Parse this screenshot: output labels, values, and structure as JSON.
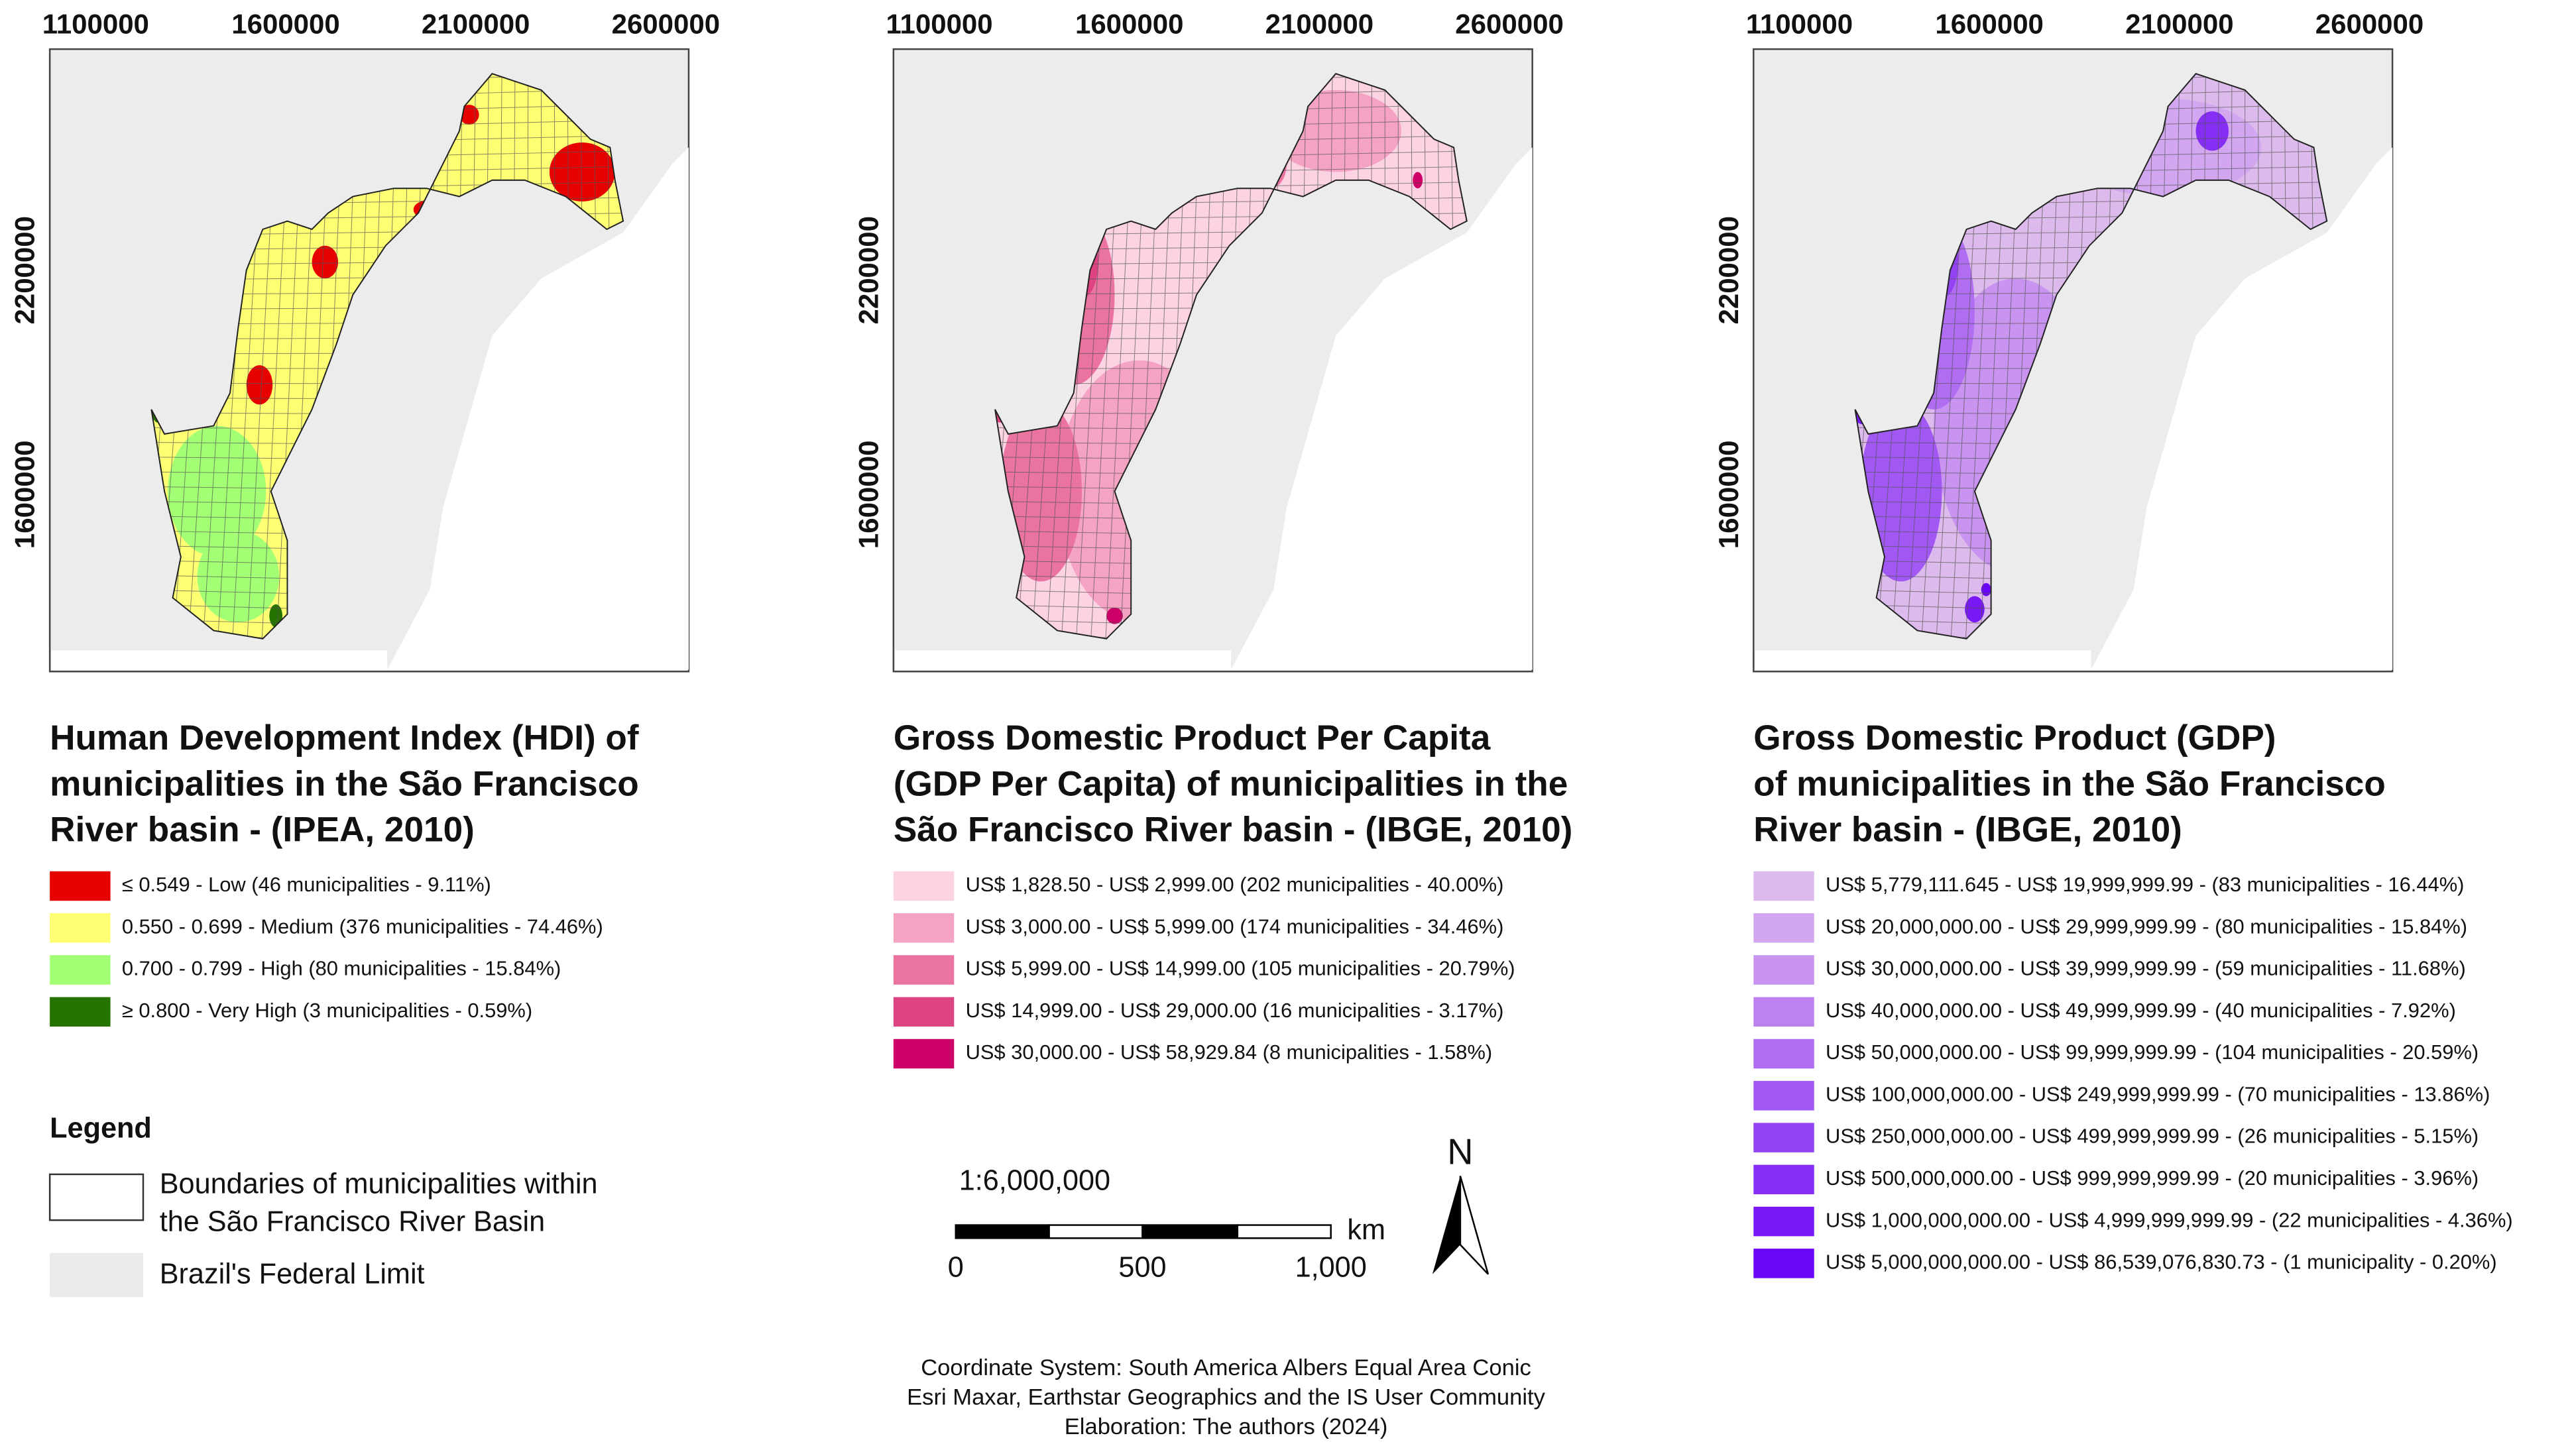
{
  "maps": [
    {
      "x_ticks": [
        1100000,
        1600000,
        2100000,
        2600000
      ],
      "y_ticks": [
        2200000,
        1600000
      ],
      "title": [
        "Human Development Index (HDI) of",
        "municipalities in the São Francisco",
        "River basin - (IPEA, 2010)"
      ],
      "legend": [
        {
          "label": "≤ 0.549 - Low (46 municipalities - 9.11%)",
          "color": "#e60000"
        },
        {
          "label": "0.550 - 0.699 - Medium (376 municipalities - 74.46%)",
          "color": "#ffff73"
        },
        {
          "label": "0.700 - 0.799 - High (80 municipalities - 15.84%)",
          "color": "#a3ff73"
        },
        {
          "label": "≥ 0.800 - Very High (3 municipalities - 0.59%)",
          "color": "#267300"
        }
      ]
    },
    {
      "x_ticks": [
        1100000,
        1600000,
        2100000,
        2600000
      ],
      "y_ticks": [
        2200000,
        1600000
      ],
      "title": [
        "Gross Domestic Product Per Capita",
        "(GDP Per Capita) of municipalities in the",
        "São Francisco River basin - (IBGE, 2010)"
      ],
      "legend": [
        {
          "label": "US$ 1,828.50 - US$ 2,999.00 (202 municipalities - 40.00%)",
          "color": "#fcd3e3"
        },
        {
          "label": "US$ 3,000.00 - US$ 5,999.00 (174 municipalities - 34.46%)",
          "color": "#f5a3c2"
        },
        {
          "label": "US$ 5,999.00 - US$ 14,999.00 (105 municipalities - 20.79%)",
          "color": "#ea73a0"
        },
        {
          "label": "US$ 14,999.00 - US$ 29,000.00 (16 municipalities - 3.17%)",
          "color": "#dd4481"
        },
        {
          "label": "US$ 30,000.00 - US$ 58,929.84 (8 municipalities - 1.58%)",
          "color": "#cc0066"
        }
      ]
    },
    {
      "x_ticks": [
        1100000,
        1600000,
        2100000,
        2600000
      ],
      "y_ticks": [
        2200000,
        1600000
      ],
      "title": [
        "Gross Domestic Product (GDP)",
        "of municipalities in the São Francisco",
        "River basin - (IBGE, 2010)"
      ],
      "legend": [
        {
          "label": "US$ 5,779,111.645 - US$ 19,999,999.99 - (83 municipalities - 16.44%)",
          "color": "#dcbaec"
        },
        {
          "label": "US$ 20,000,000.00 - US$ 29,999,999.99 - (80 municipalities - 15.84%)",
          "color": "#d3a7ef"
        },
        {
          "label": "US$ 30,000,000.00 - US$ 39,999,999.99 - (59 municipalities - 11.68%)",
          "color": "#c994f0"
        },
        {
          "label": "US$ 40,000,000.00 - US$ 49,999,999.99 - (40 municipalities - 7.92%)",
          "color": "#be81f0"
        },
        {
          "label": "US$ 50,000,000.00 - US$ 99,999,999.99 - (104 municipalities - 20.59%)",
          "color": "#b06df1"
        },
        {
          "label": "US$ 100,000,000.00 - US$ 249,999,999.99 - (70 municipalities - 13.86%)",
          "color": "#a258f3"
        },
        {
          "label": "US$ 250,000,000.00 - US$ 499,999,999.99 - (26 municipalities - 5.15%)",
          "color": "#9443f3"
        },
        {
          "label": "US$ 500,000,000.00 - US$ 999,999,999.99 - (20 municipalities - 3.96%)",
          "color": "#862ef4"
        },
        {
          "label": "US$ 1,000,000,000.00 - US$ 4,999,999,999.99 - (22 municipalities - 4.36%)",
          "color": "#7819f5"
        },
        {
          "label": "US$ 5,000,000,000.00 - US$ 86,539,076,830.73 - (1 municipality - 0.20%)",
          "color": "#6a05f5"
        }
      ]
    }
  ],
  "legend": {
    "title": "Legend",
    "boundaries": [
      "Boundaries of municipalities within",
      "the São Francisco River Basin"
    ],
    "federal": "Brazil's Federal Limit"
  },
  "scale": {
    "ratio": "1:6,000,000",
    "labels": [
      "0",
      "500",
      "1,000"
    ],
    "unit": "km"
  },
  "north": "N",
  "credits": [
    "Coordinate System: South America Albers Equal Area Conic",
    "Esri Maxar, Earthstar Geographics and the IS User Community",
    "Elaboration: The authors (2024)"
  ]
}
